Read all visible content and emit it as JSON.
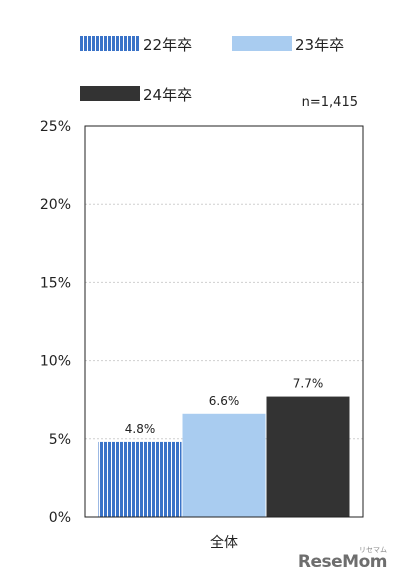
{
  "chart_data": {
    "type": "bar",
    "categories": [
      "全体"
    ],
    "series": [
      {
        "name": "22年卒",
        "values": [
          4.8
        ],
        "labels": [
          "4.8%"
        ],
        "color": "#3a73c8",
        "pattern": "vertical-stripes"
      },
      {
        "name": "23年卒",
        "values": [
          6.6
        ],
        "labels": [
          "6.6%"
        ],
        "color": "#a9ccf0",
        "pattern": "solid"
      },
      {
        "name": "24年卒",
        "values": [
          7.7
        ],
        "labels": [
          "7.7%"
        ],
        "color": "#333333",
        "pattern": "solid"
      }
    ],
    "yticks": [
      "0%",
      "5%",
      "10%",
      "15%",
      "20%",
      "25%"
    ],
    "ylim": [
      0,
      25
    ],
    "ytick_step": 5,
    "grid": true,
    "legend_position": "top",
    "annotation": "n=1,415",
    "title": "",
    "xlabel": "",
    "ylabel": ""
  },
  "watermark": {
    "brand": "ReseMom",
    "small": "リセマム"
  }
}
